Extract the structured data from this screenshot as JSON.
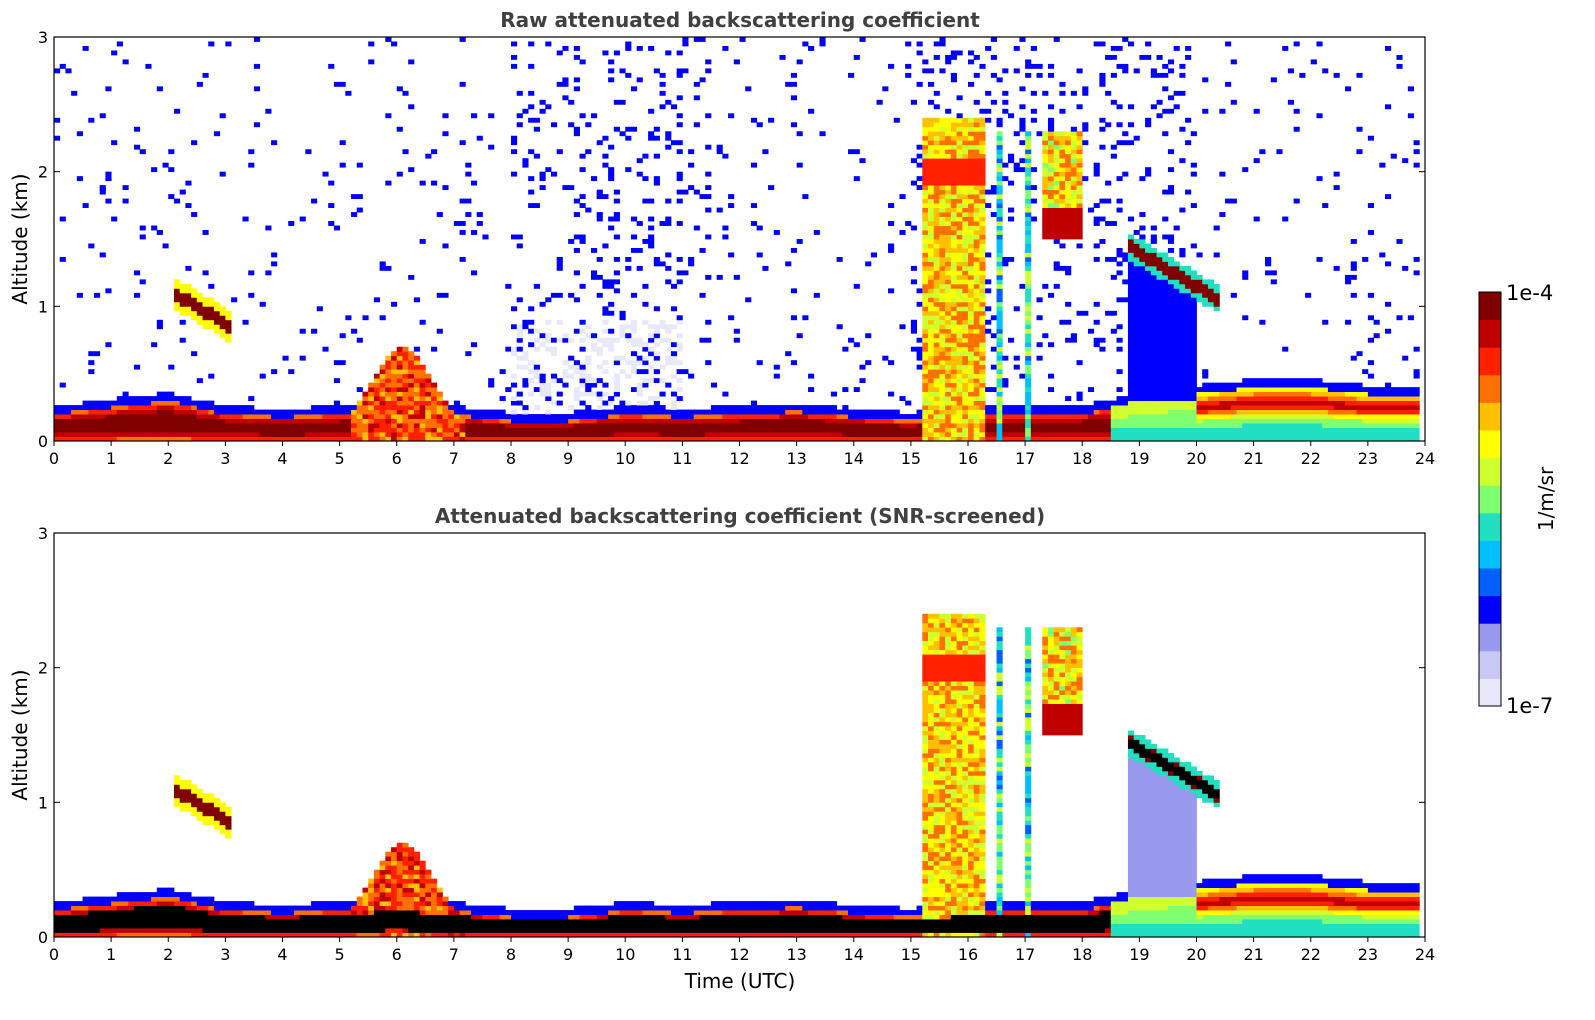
{
  "chart_data": [
    {
      "type": "heatmap",
      "title": "Raw attenuated backscattering coefficient",
      "xlabel": "",
      "ylabel": "Altitude (km)",
      "xlim": [
        0,
        24
      ],
      "ylim": [
        0,
        3
      ],
      "x_ticks": [
        "0",
        "1",
        "2",
        "3",
        "4",
        "5",
        "6",
        "7",
        "8",
        "9",
        "10",
        "11",
        "12",
        "13",
        "14",
        "15",
        "16",
        "17",
        "18",
        "19",
        "20",
        "21",
        "22",
        "23",
        "24"
      ],
      "y_ticks": [
        "0",
        "1",
        "2",
        "3"
      ],
      "color_scale": "log",
      "features": [
        {
          "name": "boundary-layer",
          "x_range": [
            0,
            23.8
          ],
          "top_km": [
            0.2,
            0.25,
            0.3,
            0.2,
            0.18,
            0.2,
            0.25,
            0.2,
            0.15,
            0.15,
            0.2,
            0.18,
            0.2,
            0.22,
            0.18,
            0.15,
            0.2,
            0.2,
            0.2,
            0.3,
            0.35,
            0.4,
            0.4,
            0.35,
            0.35
          ]
        },
        {
          "name": "cloud-2.5h",
          "x_range": [
            2.1,
            3.1
          ],
          "y_range": [
            0.8,
            1.15
          ]
        },
        {
          "name": "convective-5-7h",
          "x_range": [
            5.2,
            7.0
          ],
          "y_range": [
            0.1,
            0.75
          ]
        },
        {
          "name": "cloud-15-16h",
          "x_range": [
            15.2,
            16.3
          ],
          "y_range": [
            0.1,
            2.5
          ]
        },
        {
          "name": "cloud-17.5-18h",
          "x_range": [
            17.3,
            18.0
          ],
          "y_range": [
            1.5,
            2.3
          ]
        },
        {
          "name": "cloud-19-20h",
          "x_range": [
            18.8,
            20.4
          ],
          "y_range": [
            0.9,
            1.7
          ]
        }
      ]
    },
    {
      "type": "heatmap",
      "title": "Attenuated backscattering coefficient (SNR-screened)",
      "xlabel": "Time (UTC)",
      "ylabel": "Altitude (km)",
      "xlim": [
        0,
        24
      ],
      "ylim": [
        0,
        3
      ],
      "x_ticks": [
        "0",
        "1",
        "2",
        "3",
        "4",
        "5",
        "6",
        "7",
        "8",
        "9",
        "10",
        "11",
        "12",
        "13",
        "14",
        "15",
        "16",
        "17",
        "18",
        "19",
        "20",
        "21",
        "22",
        "23",
        "24"
      ],
      "y_ticks": [
        "0",
        "1",
        "2",
        "3"
      ],
      "color_scale": "log"
    }
  ],
  "colorbar": {
    "label": "1/m/sr",
    "max_label": "1e-4",
    "min_label": "1e-7",
    "colors": [
      "#e8e8fb",
      "#c8c8f5",
      "#9999ee",
      "#0000ff",
      "#0060ff",
      "#00c0ff",
      "#20e0c0",
      "#80ff70",
      "#d0ff30",
      "#ffff00",
      "#ffc000",
      "#ff7000",
      "#ff2000",
      "#c00000",
      "#800000"
    ]
  }
}
